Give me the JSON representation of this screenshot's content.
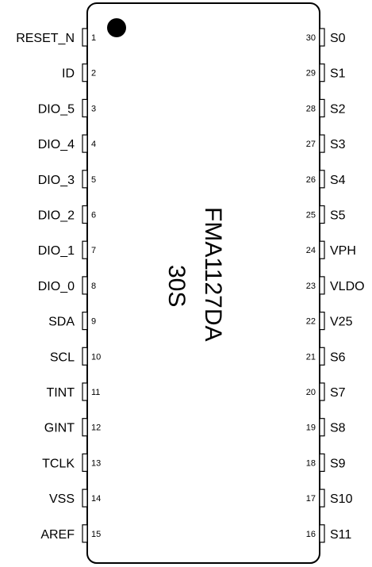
{
  "chip": {
    "part_number": "FMA1127DA",
    "package": "30S"
  },
  "left_pins": [
    {
      "name": "RESET_N",
      "number": "1"
    },
    {
      "name": "ID",
      "number": "2"
    },
    {
      "name": "DIO_5",
      "number": "3"
    },
    {
      "name": "DIO_4",
      "number": "4"
    },
    {
      "name": "DIO_3",
      "number": "5"
    },
    {
      "name": "DIO_2",
      "number": "6"
    },
    {
      "name": "DIO_1",
      "number": "7"
    },
    {
      "name": "DIO_0",
      "number": "8"
    },
    {
      "name": "SDA",
      "number": "9"
    },
    {
      "name": "SCL",
      "number": "10"
    },
    {
      "name": "TINT",
      "number": "11"
    },
    {
      "name": "GINT",
      "number": "12"
    },
    {
      "name": "TCLK",
      "number": "13"
    },
    {
      "name": "VSS",
      "number": "14"
    },
    {
      "name": "AREF",
      "number": "15"
    }
  ],
  "right_pins": [
    {
      "name": "S0",
      "number": "30"
    },
    {
      "name": "S1",
      "number": "29"
    },
    {
      "name": "S2",
      "number": "28"
    },
    {
      "name": "S3",
      "number": "27"
    },
    {
      "name": "S4",
      "number": "26"
    },
    {
      "name": "S5",
      "number": "25"
    },
    {
      "name": "VPH",
      "number": "24"
    },
    {
      "name": "VLDO",
      "number": "23"
    },
    {
      "name": "V25",
      "number": "22"
    },
    {
      "name": "S6",
      "number": "21"
    },
    {
      "name": "S7",
      "number": "20"
    },
    {
      "name": "S8",
      "number": "19"
    },
    {
      "name": "S9",
      "number": "18"
    },
    {
      "name": "S10",
      "number": "17"
    },
    {
      "name": "S11",
      "number": "16"
    }
  ]
}
